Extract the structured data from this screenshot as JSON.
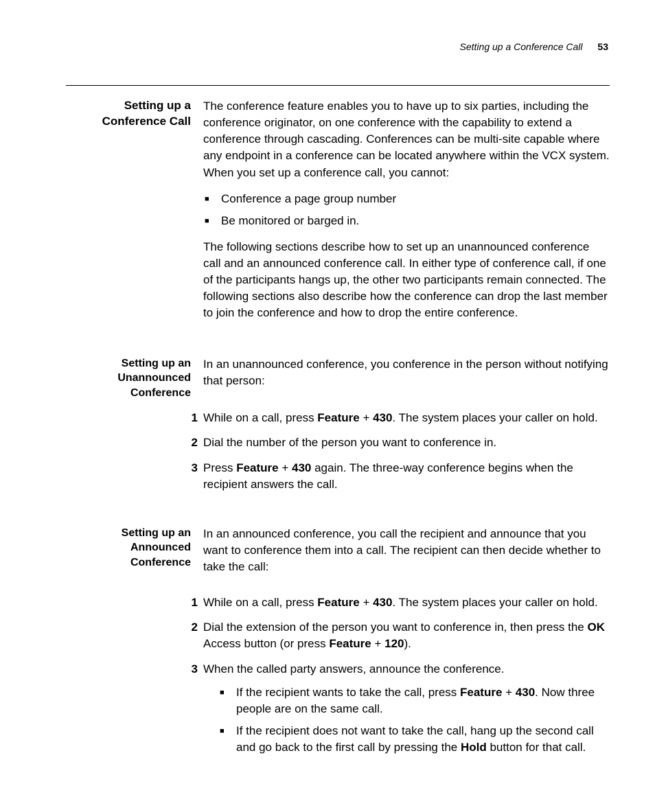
{
  "page": {
    "running_head": "Setting up a Conference Call",
    "page_number": "53"
  },
  "s1": {
    "heading_l1": "Setting up a",
    "heading_l2": "Conference Call",
    "intro": "The conference feature enables you to have up to six parties, including the conference originator, on one conference with the capability to extend a conference through cascading. Conferences can be multi-site capable where any endpoint in a conference can be located anywhere within the VCX system. When you set up a conference call, you cannot:",
    "bullets": {
      "b1": "Conference a page group number",
      "b2": "Be monitored or barged in."
    },
    "after": "The following sections describe how to set up an unannounced conference call and an announced conference call. In either type of conference call, if one of the participants hangs up, the other two participants remain connected. The following sections also describe how the conference can drop the last member to join the conference and how to drop the entire conference."
  },
  "s2": {
    "heading_l1": "Setting up an",
    "heading_l2": "Unannounced",
    "heading_l3": "Conference",
    "intro": "In an unannounced conference, you conference in the person without notifying that person:",
    "steps": {
      "n1a": "While on a call, press ",
      "n1b": "Feature",
      "n1c": " + ",
      "n1d": "430",
      "n1e": ". The system places your caller on hold.",
      "n2": "Dial the number of the person you want to conference in.",
      "n3a": "Press ",
      "n3b": "Feature",
      "n3c": " + ",
      "n3d": "430",
      "n3e": " again. The three-way conference begins when the recipient answers the call."
    }
  },
  "s3": {
    "heading_l1": "Setting up an",
    "heading_l2": "Announced",
    "heading_l3": "Conference",
    "intro": "In an announced conference, you call the recipient and announce that you want to conference them into a call. The recipient can then decide whether to take the call:",
    "steps": {
      "n1a": "While on a call, press ",
      "n1b": "Feature",
      "n1c": " + ",
      "n1d": "430",
      "n1e": ". The system places your caller on hold.",
      "n2a": "Dial the extension of the person you want to conference in, then press the ",
      "n2b": "OK",
      "n2c": " Access button (or press ",
      "n2d": "Feature",
      "n2e": " + ",
      "n2f": "120",
      "n2g": ").",
      "n3": "When the called party answers, announce the conference.",
      "sub": {
        "a1": "If the recipient wants to take the call, press ",
        "a2": "Feature",
        "a3": " + ",
        "a4": "430",
        "a5": ". Now three people are on the same call.",
        "b1": "If the recipient does not want to take the call, hang up the second call and go back to the first call by pressing the ",
        "b2": "Hold",
        "b3": " button for that call."
      }
    }
  },
  "nums": {
    "one": "1",
    "two": "2",
    "three": "3"
  },
  "glyph": {
    "square": "■"
  }
}
